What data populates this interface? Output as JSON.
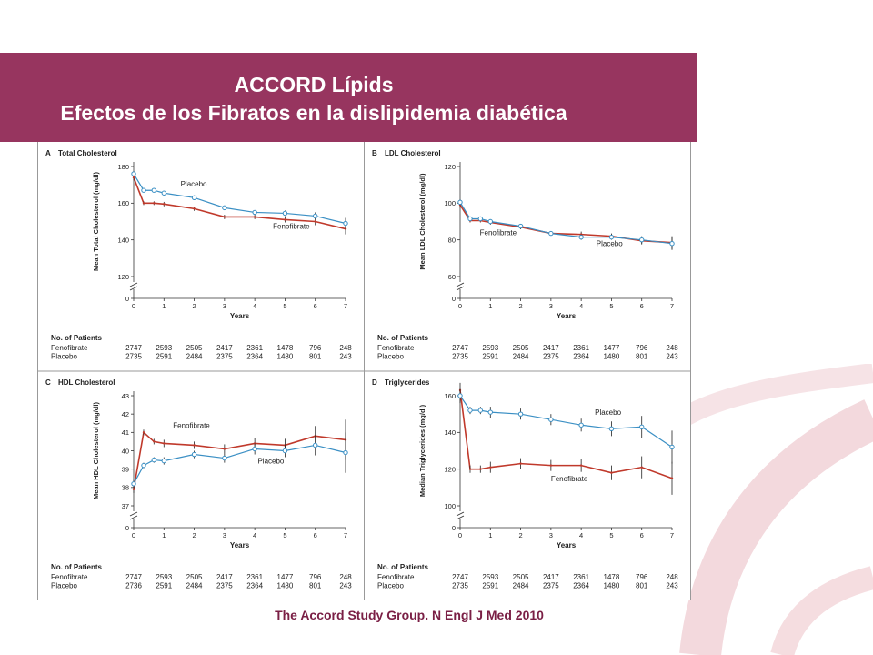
{
  "banner": {
    "title": "ACCORD Lípids",
    "subtitle": "Efectos de los Fibratos en la dislipidemia diabética"
  },
  "citation": "The Accord Study Group. N Engl J Med 2010",
  "colors": {
    "banner": "#97355f",
    "fenofibrate": "#c0392b",
    "placebo": "#3a8fc4",
    "citation": "#7a1f45"
  },
  "chart_data": [
    {
      "type": "line",
      "panel_letter": "A",
      "title": "Total Cholesterol",
      "ylabel": "Mean Total Cholesterol (mg/dl)",
      "xlabel": "Years",
      "ylim": [
        120,
        180
      ],
      "yticks": [
        120,
        140,
        160,
        180
      ],
      "xticks": [
        0,
        1,
        2,
        3,
        4,
        5,
        6,
        7
      ],
      "axis_break": true,
      "zero_label": "0",
      "series": [
        {
          "name": "Placebo",
          "x": [
            0,
            0.33,
            0.67,
            1,
            2,
            3,
            4,
            5,
            6,
            7
          ],
          "values": [
            176,
            167,
            167,
            165.5,
            163,
            157.5,
            155,
            154.5,
            153,
            149
          ],
          "err": [
            1.5,
            1,
            1,
            1.2,
            1.2,
            1.2,
            1.2,
            1.5,
            2,
            3
          ]
        },
        {
          "name": "Fenofibrate",
          "x": [
            0,
            0.33,
            0.67,
            1,
            2,
            3,
            4,
            5,
            6,
            7
          ],
          "values": [
            174,
            160,
            160,
            159.5,
            157,
            152.5,
            152.5,
            151,
            150,
            146
          ],
          "err": [
            1.5,
            1,
            1,
            1.2,
            1.2,
            1.2,
            1.2,
            1.5,
            2,
            3
          ]
        }
      ],
      "labels": [
        {
          "text": "Placebo",
          "x": 1.55,
          "y": 169
        },
        {
          "text": "Fenofibrate",
          "x": 4.6,
          "y": 146
        }
      ],
      "patients": {
        "header": "No. of Patients",
        "rows": [
          {
            "name": "Fenofibrate",
            "values": [
              "2747",
              "2593",
              "2505",
              "2417",
              "2361",
              "1478",
              "796",
              "248"
            ]
          },
          {
            "name": "Placebo",
            "values": [
              "2735",
              "2591",
              "2484",
              "2375",
              "2364",
              "1480",
              "801",
              "243"
            ]
          }
        ]
      }
    },
    {
      "type": "line",
      "panel_letter": "B",
      "title": "LDL Cholesterol",
      "ylabel": "Mean LDL Cholesterol (mg/dl)",
      "xlabel": "Years",
      "ylim": [
        60,
        120
      ],
      "yticks": [
        60,
        80,
        100,
        120
      ],
      "xticks": [
        0,
        1,
        2,
        3,
        4,
        5,
        6,
        7
      ],
      "axis_break": true,
      "zero_label": "0",
      "series": [
        {
          "name": "Placebo",
          "x": [
            0,
            0.33,
            0.67,
            1,
            2,
            3,
            4,
            5,
            6,
            7
          ],
          "values": [
            100.5,
            91.5,
            91.5,
            90,
            87.5,
            83.5,
            81.5,
            81.5,
            80,
            78
          ],
          "err": [
            1.5,
            1,
            1,
            1.2,
            1.2,
            1.2,
            1.5,
            1.5,
            2,
            3.5
          ]
        },
        {
          "name": "Fenofibrate",
          "x": [
            0,
            0.33,
            0.67,
            1,
            2,
            3,
            4,
            5,
            6,
            7
          ],
          "values": [
            99,
            90.5,
            90.5,
            89.5,
            87,
            83.5,
            83,
            82,
            79.5,
            78.5
          ],
          "err": [
            1.5,
            1,
            1,
            1.2,
            1.2,
            1.2,
            1.5,
            1.5,
            2,
            3.5
          ]
        }
      ],
      "labels": [
        {
          "text": "Fenofibrate",
          "x": 0.65,
          "y": 82.5
        },
        {
          "text": "Placebo",
          "x": 4.5,
          "y": 76.5
        }
      ],
      "patients": {
        "header": "No. of Patients",
        "rows": [
          {
            "name": "Fenofibrate",
            "values": [
              "2747",
              "2593",
              "2505",
              "2417",
              "2361",
              "1477",
              "796",
              "248"
            ]
          },
          {
            "name": "Placebo",
            "values": [
              "2735",
              "2591",
              "2484",
              "2375",
              "2364",
              "1480",
              "801",
              "243"
            ]
          }
        ]
      }
    },
    {
      "type": "line",
      "panel_letter": "C",
      "title": "HDL Cholesterol",
      "ylabel": "Mean HDL Cholesterol (mg/dl)",
      "xlabel": "Years",
      "ylim": [
        37,
        43
      ],
      "yticks": [
        37,
        38,
        39,
        40,
        41,
        42,
        43
      ],
      "xticks": [
        0,
        1,
        2,
        3,
        4,
        5,
        6,
        7
      ],
      "axis_break": true,
      "zero_label": "0",
      "series": [
        {
          "name": "Placebo",
          "x": [
            0,
            0.33,
            0.67,
            1,
            2,
            3,
            4,
            5,
            6,
            7
          ],
          "values": [
            38.2,
            39.2,
            39.5,
            39.45,
            39.8,
            39.6,
            40.1,
            40.0,
            40.3,
            39.9
          ],
          "err": [
            0.2,
            0.15,
            0.15,
            0.2,
            0.2,
            0.25,
            0.3,
            0.35,
            0.55,
            1.1
          ]
        },
        {
          "name": "Fenofibrate",
          "x": [
            0,
            0.33,
            0.67,
            1,
            2,
            3,
            4,
            5,
            6,
            7
          ],
          "values": [
            37.9,
            41.0,
            40.5,
            40.4,
            40.3,
            40.1,
            40.4,
            40.3,
            40.8,
            40.6
          ],
          "err": [
            0.2,
            0.15,
            0.15,
            0.2,
            0.2,
            0.25,
            0.3,
            0.35,
            0.55,
            1.1
          ]
        }
      ],
      "labels": [
        {
          "text": "Fenofibrate",
          "x": 1.3,
          "y": 41.25
        },
        {
          "text": "Placebo",
          "x": 4.1,
          "y": 39.3
        }
      ],
      "patients": {
        "header": "No. of Patients",
        "rows": [
          {
            "name": "Fenofibrate",
            "values": [
              "2747",
              "2593",
              "2505",
              "2417",
              "2361",
              "1477",
              "796",
              "248"
            ]
          },
          {
            "name": "Placebo",
            "values": [
              "2736",
              "2591",
              "2484",
              "2375",
              "2364",
              "1480",
              "801",
              "243"
            ]
          }
        ]
      }
    },
    {
      "type": "line",
      "panel_letter": "D",
      "title": "Triglycerides",
      "ylabel": "Median Triglycerides (mg/dl)",
      "xlabel": "Years",
      "ylim": [
        100,
        160
      ],
      "yticks": [
        100,
        120,
        140,
        160
      ],
      "xticks": [
        0,
        1,
        2,
        3,
        4,
        5,
        6,
        7
      ],
      "axis_break": true,
      "zero_label": "0",
      "series": [
        {
          "name": "Placebo",
          "x": [
            0,
            0.33,
            0.67,
            1,
            2,
            3,
            4,
            5,
            6,
            7
          ],
          "values": [
            160,
            152,
            152,
            151,
            150,
            147,
            144,
            142,
            143,
            132
          ],
          "err": [
            4,
            2,
            2,
            3,
            3,
            3,
            3.5,
            4,
            6,
            9
          ]
        },
        {
          "name": "Fenofibrate",
          "x": [
            0,
            0.33,
            0.67,
            1,
            2,
            3,
            4,
            5,
            6,
            7
          ],
          "values": [
            163,
            120,
            120,
            121,
            123,
            122,
            122,
            118,
            121,
            115
          ],
          "err": [
            4,
            2,
            2,
            3,
            3,
            3,
            3.5,
            4,
            6,
            9
          ]
        }
      ],
      "labels": [
        {
          "text": "Placebo",
          "x": 4.45,
          "y": 149.5
        },
        {
          "text": "Fenofibrate",
          "x": 3.0,
          "y": 113.5
        }
      ],
      "patients": {
        "header": "No. of Patients",
        "rows": [
          {
            "name": "Fenofibrate",
            "values": [
              "2747",
              "2593",
              "2505",
              "2417",
              "2361",
              "1478",
              "796",
              "248"
            ]
          },
          {
            "name": "Placebo",
            "values": [
              "2735",
              "2591",
              "2484",
              "2375",
              "2364",
              "1480",
              "801",
              "243"
            ]
          }
        ]
      }
    }
  ]
}
